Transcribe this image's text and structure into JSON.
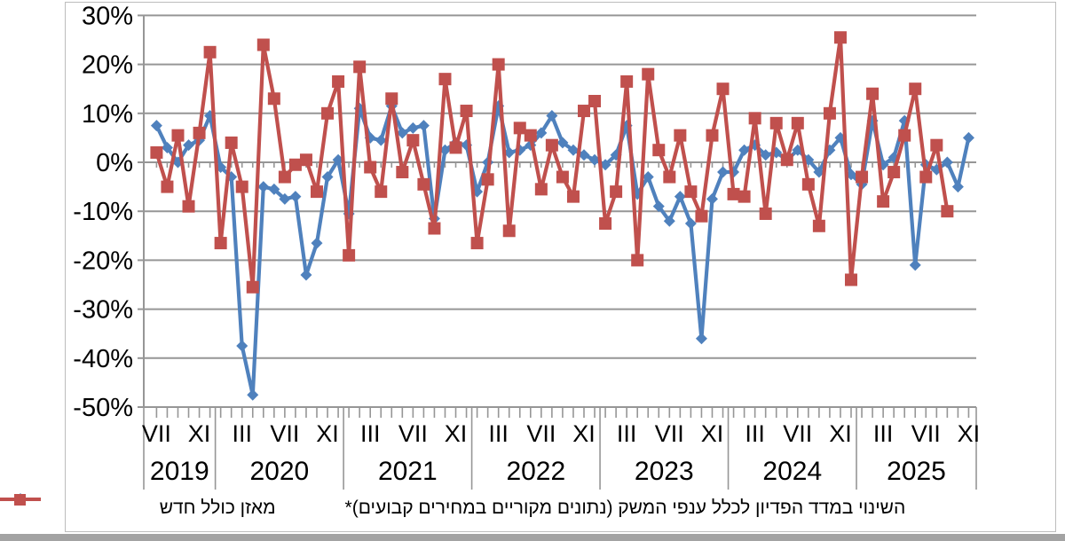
{
  "legend": {
    "balance_label": "מאזן כולל חדש",
    "revenue_label": "השינוי במדד הפדיון לכלל ענפי המשק (נתונים מקוריים במחירים קבועים)*"
  },
  "colors": {
    "balance": "#4f81bd",
    "revenue": "#c0504d",
    "gridline": "#969696",
    "axis": "#808080",
    "border": "#bdbdbd"
  },
  "chart_data": {
    "type": "line",
    "title": "",
    "xlabel": "",
    "ylabel": "",
    "x_start_month": "2019-07",
    "months_count": 77,
    "ylim": [
      -50,
      30
    ],
    "grid": true,
    "legend_position": "bottom",
    "y_tick_labels": [
      "30%",
      "20%",
      "10%",
      "0%",
      "-10%",
      "-20%",
      "-30%",
      "-40%",
      "-50%"
    ],
    "y_tick_values": [
      30,
      20,
      10,
      0,
      -10,
      -20,
      -30,
      -40,
      -50
    ],
    "x_tick_labels": [
      {
        "n": 0,
        "label": "VII"
      },
      {
        "n": 4,
        "label": "XI"
      },
      {
        "n": 8,
        "label": "III"
      },
      {
        "n": 12,
        "label": "VII"
      },
      {
        "n": 16,
        "label": "XI"
      },
      {
        "n": 20,
        "label": "III"
      },
      {
        "n": 24,
        "label": "VII"
      },
      {
        "n": 28,
        "label": "XI"
      },
      {
        "n": 32,
        "label": "III"
      },
      {
        "n": 36,
        "label": "VII"
      },
      {
        "n": 40,
        "label": "XI"
      },
      {
        "n": 44,
        "label": "III"
      },
      {
        "n": 48,
        "label": "VII"
      },
      {
        "n": 52,
        "label": "XI"
      },
      {
        "n": 56,
        "label": "III"
      },
      {
        "n": 60,
        "label": "VII"
      },
      {
        "n": 64,
        "label": "XI"
      },
      {
        "n": 68,
        "label": "III"
      },
      {
        "n": 72,
        "label": "VII"
      },
      {
        "n": 76,
        "label": "XI"
      }
    ],
    "year_bands": [
      {
        "label": "2019",
        "from_n": 0,
        "to_n": 5
      },
      {
        "label": "2020",
        "from_n": 6,
        "to_n": 17
      },
      {
        "label": "2021",
        "from_n": 18,
        "to_n": 29
      },
      {
        "label": "2022",
        "from_n": 30,
        "to_n": 41
      },
      {
        "label": "2023",
        "from_n": 42,
        "to_n": 53
      },
      {
        "label": "2024",
        "from_n": 54,
        "to_n": 65
      },
      {
        "label": "2025",
        "from_n": 66,
        "to_n": 76
      }
    ],
    "series": [
      {
        "name": "מאזן כולל חדש",
        "marker": "diamond",
        "color": "#4f81bd",
        "values": [
          7.5,
          3,
          0,
          3.5,
          4.5,
          9.5,
          -1,
          -3,
          -37.5,
          -47.5,
          -5,
          -5.5,
          -7.5,
          -7,
          -23,
          -16.5,
          -3,
          0.5,
          -10.5,
          11,
          5,
          4.5,
          11.5,
          6,
          7,
          7.5,
          -11.5,
          2.5,
          4,
          3.5,
          -6,
          0,
          11.5,
          2,
          2.5,
          3.5,
          6,
          9.5,
          4,
          2.5,
          1.5,
          0.5,
          -0.5,
          1.5,
          7.5,
          -6.5,
          -3,
          -9,
          -12,
          -7,
          -12.5,
          -36,
          -7.5,
          -2,
          -2,
          2.5,
          3.5,
          1.5,
          2,
          0.5,
          2.5,
          0.5,
          -2,
          2.5,
          5,
          -2.5,
          -4.5,
          8.5,
          -0.5,
          1,
          8.5,
          -21,
          -0.5,
          -1.5,
          0,
          -5,
          5
        ]
      },
      {
        "name": "השינוי במדד הפדיון לכלל ענפי המשק (נתונים מקוריים במחירים קבועים)*",
        "marker": "square",
        "color": "#c0504d",
        "values": [
          2,
          -5,
          5.5,
          -9,
          6,
          22.5,
          -16.5,
          4,
          -5,
          -25.5,
          24,
          13,
          -3,
          -0.5,
          0.5,
          -6,
          10,
          16.5,
          -19,
          19.5,
          -1,
          -6,
          13,
          -2,
          4.5,
          -4.5,
          -13.5,
          17,
          3,
          10.5,
          -16.5,
          -3.5,
          20,
          -14,
          7,
          5.5,
          -5.5,
          3.5,
          -3,
          -7,
          10.5,
          12.5,
          -12.5,
          -6,
          16.5,
          -20,
          18,
          2.5,
          -3,
          5.5,
          -6,
          -11,
          5.5,
          15,
          -6.5,
          -7,
          9,
          -10.5,
          8,
          0.5,
          8,
          -4.5,
          -13,
          10,
          25.5,
          -24,
          -3,
          14,
          -8,
          -2,
          5.5,
          15,
          -3,
          3.5,
          -10,
          null,
          null
        ]
      }
    ]
  }
}
